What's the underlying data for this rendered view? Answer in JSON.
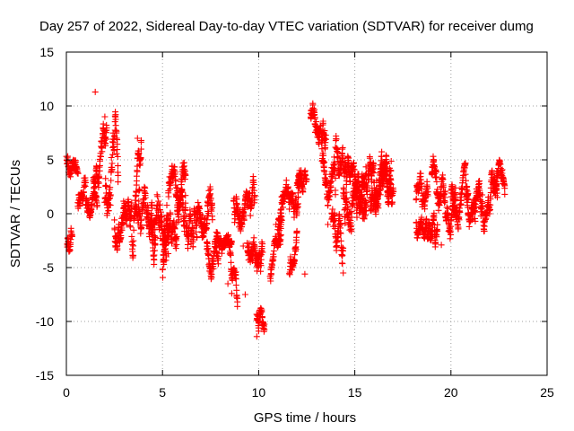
{
  "chart_data": {
    "type": "scatter",
    "title": "Day 257 of 2022, Sidereal Day-to-day VTEC variation (SDTVAR) for receiver dumg",
    "xlabel": "GPS time / hours",
    "ylabel": "SDTVAR / TECUs",
    "xlim": [
      0,
      25
    ],
    "ylim": [
      -15,
      15
    ],
    "xticks": [
      "0",
      "5",
      "10",
      "15",
      "20",
      "25"
    ],
    "yticks": [
      "15",
      "10",
      "5",
      "0",
      "-5",
      "-10",
      "-15"
    ],
    "grid": true,
    "marker": "+",
    "color": "#ff0000",
    "series": [
      {
        "name": "SDTVAR",
        "segments": [
          {
            "t0": 0.0,
            "t1": 0.6,
            "y0": 4.5,
            "y1": 3.0,
            "spread": 1.2
          },
          {
            "t0": 0.05,
            "t1": 0.3,
            "y0": -2.8,
            "y1": -2.0,
            "spread": 0.8
          },
          {
            "t0": 0.6,
            "t1": 1.0,
            "y0": 1.0,
            "y1": 2.0,
            "spread": 1.0
          },
          {
            "t0": 1.0,
            "t1": 1.6,
            "y0": 0.5,
            "y1": 1.5,
            "spread": 0.8
          },
          {
            "t0": 1.4,
            "t1": 2.1,
            "y0": 2.0,
            "y1": 8.5,
            "spread": 1.5
          },
          {
            "t0": 2.0,
            "t1": 2.7,
            "y0": 0.0,
            "y1": 7.0,
            "spread": 2.5
          },
          {
            "t0": 2.5,
            "t1": 3.4,
            "y0": -1.5,
            "y1": 0.5,
            "spread": 1.5
          },
          {
            "t0": 3.4,
            "t1": 3.8,
            "y0": -2.5,
            "y1": 2.0,
            "spread": 1.5
          },
          {
            "t0": 3.6,
            "t1": 3.9,
            "y0": 2.0,
            "y1": 6.5,
            "spread": 1.2
          },
          {
            "t0": 3.8,
            "t1": 4.6,
            "y0": 0.0,
            "y1": -2.0,
            "spread": 2.0
          },
          {
            "t0": 4.4,
            "t1": 5.3,
            "y0": 1.5,
            "y1": -3.0,
            "spread": 2.5
          },
          {
            "t0": 5.0,
            "t1": 5.8,
            "y0": -3.5,
            "y1": -1.0,
            "spread": 2.2
          },
          {
            "t0": 5.3,
            "t1": 6.2,
            "y0": 2.5,
            "y1": 3.5,
            "spread": 1.5
          },
          {
            "t0": 5.8,
            "t1": 6.8,
            "y0": 0.5,
            "y1": -1.5,
            "spread": 2.2
          },
          {
            "t0": 6.8,
            "t1": 7.6,
            "y0": -1.0,
            "y1": 1.5,
            "spread": 1.8
          },
          {
            "t0": 7.3,
            "t1": 7.9,
            "y0": -3.5,
            "y1": -4.5,
            "spread": 1.2
          },
          {
            "t0": 7.8,
            "t1": 8.6,
            "y0": -2.5,
            "y1": -3.0,
            "spread": 0.8
          },
          {
            "t0": 8.5,
            "t1": 8.9,
            "y0": -4.0,
            "y1": -7.0,
            "spread": 1.0
          },
          {
            "t0": 8.7,
            "t1": 9.8,
            "y0": 0.0,
            "y1": 1.5,
            "spread": 1.5
          },
          {
            "t0": 9.4,
            "t1": 10.2,
            "y0": -2.0,
            "y1": -5.0,
            "spread": 1.5
          },
          {
            "t0": 9.9,
            "t1": 10.3,
            "y0": -9.5,
            "y1": -10.5,
            "spread": 0.9
          },
          {
            "t0": 10.6,
            "t1": 11.2,
            "y0": -5.0,
            "y1": -1.5,
            "spread": 1.0
          },
          {
            "t0": 11.0,
            "t1": 12.2,
            "y0": 0.0,
            "y1": 2.5,
            "spread": 1.5
          },
          {
            "t0": 11.6,
            "t1": 12.0,
            "y0": -5.0,
            "y1": -3.0,
            "spread": 1.0
          },
          {
            "t0": 12.0,
            "t1": 12.5,
            "y0": 2.5,
            "y1": 3.0,
            "spread": 0.8
          },
          {
            "t0": 12.7,
            "t1": 13.5,
            "y0": 9.0,
            "y1": 6.0,
            "spread": 1.3
          },
          {
            "t0": 13.3,
            "t1": 14.0,
            "y0": 4.0,
            "y1": 2.0,
            "spread": 1.8
          },
          {
            "t0": 13.8,
            "t1": 14.4,
            "y0": -1.0,
            "y1": -3.0,
            "spread": 1.5
          },
          {
            "t0": 14.0,
            "t1": 15.0,
            "y0": 5.0,
            "y1": 4.0,
            "spread": 1.5
          },
          {
            "t0": 14.4,
            "t1": 15.6,
            "y0": 0.5,
            "y1": 1.5,
            "spread": 2.0
          },
          {
            "t0": 15.0,
            "t1": 16.2,
            "y0": 3.0,
            "y1": 2.0,
            "spread": 1.8
          },
          {
            "t0": 15.8,
            "t1": 16.9,
            "y0": 1.0,
            "y1": 4.5,
            "spread": 1.8
          },
          {
            "t0": 16.3,
            "t1": 17.0,
            "y0": 4.0,
            "y1": 1.5,
            "spread": 1.5
          },
          {
            "t0": 18.2,
            "t1": 18.8,
            "y0": 2.0,
            "y1": 1.0,
            "spread": 1.2
          },
          {
            "t0": 18.2,
            "t1": 19.3,
            "y0": -1.0,
            "y1": -2.0,
            "spread": 1.2
          },
          {
            "t0": 19.0,
            "t1": 19.7,
            "y0": 3.0,
            "y1": 1.0,
            "spread": 1.5
          },
          {
            "t0": 19.7,
            "t1": 20.3,
            "y0": -1.0,
            "y1": 0.5,
            "spread": 1.5
          },
          {
            "t0": 20.0,
            "t1": 20.9,
            "y0": 1.0,
            "y1": 2.0,
            "spread": 1.3
          },
          {
            "t0": 20.8,
            "t1": 21.8,
            "y0": 0.5,
            "y1": 1.0,
            "spread": 1.5
          },
          {
            "t0": 21.8,
            "t1": 22.4,
            "y0": 0.0,
            "y1": 3.0,
            "spread": 1.2
          },
          {
            "t0": 22.2,
            "t1": 22.8,
            "y0": 3.5,
            "y1": 4.0,
            "spread": 1.2
          }
        ],
        "points": [
          [
            1.5,
            11.3
          ],
          [
            0.05,
            -2.9
          ],
          [
            0.1,
            -2.6
          ],
          [
            8.6,
            -7.4
          ],
          [
            9.3,
            -7.5
          ],
          [
            9.9,
            -11.4
          ],
          [
            10.0,
            -10.9
          ],
          [
            12.4,
            -5.6
          ],
          [
            14.4,
            -5.5
          ],
          [
            19.5,
            -2.9
          ],
          [
            18.7,
            -1.5
          ],
          [
            22.8,
            1.8
          ],
          [
            12.9,
            9.2
          ],
          [
            2.0,
            9.0
          ],
          [
            3.7,
            7.0
          ],
          [
            10.9,
            -1.0
          ],
          [
            13.6,
            -1.0
          ],
          [
            15.5,
            1.0
          ],
          [
            8.4,
            -6.5
          ],
          [
            9.2,
            -3.0
          ]
        ]
      }
    ]
  }
}
